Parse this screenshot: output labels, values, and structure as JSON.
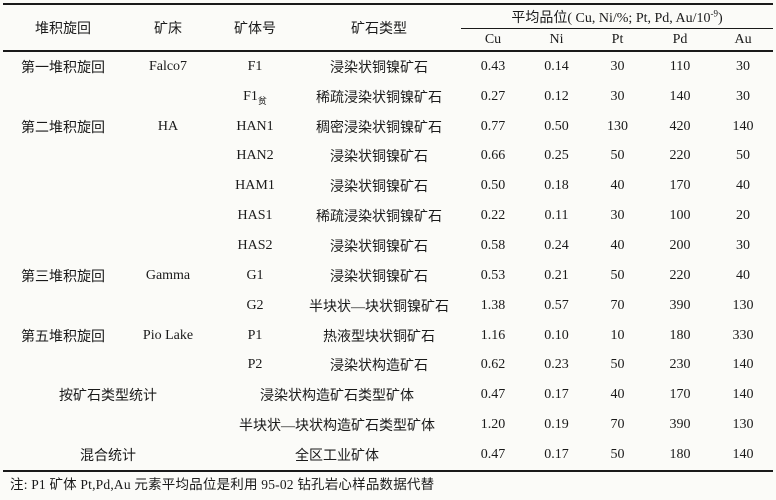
{
  "colors": {
    "background": "#fbfbf8",
    "text": "#1a1a1a",
    "rule_line": "#1a1a1a"
  },
  "table": {
    "headers": {
      "cycle": "堆积旋回",
      "deposit": "矿床",
      "ore_body": "矿体号",
      "ore_type": "矿石类型",
      "grade_group_prefix": "平均品位( Cu, Ni/%; Pt, Pd, Au/10",
      "grade_group_sup": "-9",
      "grade_group_suffix": ")",
      "cu": "Cu",
      "ni": "Ni",
      "pt": "Pt",
      "pd": "Pd",
      "au": "Au"
    },
    "rows": [
      {
        "cycle": "第一堆积旋回",
        "deposit": "Falco7",
        "ore_body": "F1",
        "ore_body_sub": "",
        "ore_type": "浸染状铜镍矿石",
        "cu": "0.43",
        "ni": "0.14",
        "pt": "30",
        "pd": "110",
        "au": "30"
      },
      {
        "cycle": "",
        "deposit": "",
        "ore_body": "F1",
        "ore_body_sub": "贫",
        "ore_type": "稀疏浸染状铜镍矿石",
        "cu": "0.27",
        "ni": "0.12",
        "pt": "30",
        "pd": "140",
        "au": "30"
      },
      {
        "cycle": "第二堆积旋回",
        "deposit": "HA",
        "ore_body": "HAN1",
        "ore_body_sub": "",
        "ore_type": "稠密浸染状铜镍矿石",
        "cu": "0.77",
        "ni": "0.50",
        "pt": "130",
        "pd": "420",
        "au": "140"
      },
      {
        "cycle": "",
        "deposit": "",
        "ore_body": "HAN2",
        "ore_body_sub": "",
        "ore_type": "浸染状铜镍矿石",
        "cu": "0.66",
        "ni": "0.25",
        "pt": "50",
        "pd": "220",
        "au": "50"
      },
      {
        "cycle": "",
        "deposit": "",
        "ore_body": "HAM1",
        "ore_body_sub": "",
        "ore_type": "浸染状铜镍矿石",
        "cu": "0.50",
        "ni": "0.18",
        "pt": "40",
        "pd": "170",
        "au": "40"
      },
      {
        "cycle": "",
        "deposit": "",
        "ore_body": "HAS1",
        "ore_body_sub": "",
        "ore_type": "稀疏浸染状铜镍矿石",
        "cu": "0.22",
        "ni": "0.11",
        "pt": "30",
        "pd": "100",
        "au": "20"
      },
      {
        "cycle": "",
        "deposit": "",
        "ore_body": "HAS2",
        "ore_body_sub": "",
        "ore_type": "浸染状铜镍矿石",
        "cu": "0.58",
        "ni": "0.24",
        "pt": "40",
        "pd": "200",
        "au": "30"
      },
      {
        "cycle": "第三堆积旋回",
        "deposit": "Gamma",
        "ore_body": "G1",
        "ore_body_sub": "",
        "ore_type": "浸染状铜镍矿石",
        "cu": "0.53",
        "ni": "0.21",
        "pt": "50",
        "pd": "220",
        "au": "40"
      },
      {
        "cycle": "",
        "deposit": "",
        "ore_body": "G2",
        "ore_body_sub": "",
        "ore_type": "半块状—块状铜镍矿石",
        "cu": "1.38",
        "ni": "0.57",
        "pt": "70",
        "pd": "390",
        "au": "130"
      },
      {
        "cycle": "第五堆积旋回",
        "deposit": "Pio Lake",
        "ore_body": "P1",
        "ore_body_sub": "",
        "ore_type": "热液型块状铜矿石",
        "cu": "1.16",
        "ni": "0.10",
        "pt": "10",
        "pd": "180",
        "au": "330"
      },
      {
        "cycle": "",
        "deposit": "",
        "ore_body": "P2",
        "ore_body_sub": "",
        "ore_type": "浸染状构造矿石",
        "cu": "0.62",
        "ni": "0.23",
        "pt": "50",
        "pd": "230",
        "au": "140"
      },
      {
        "span": true,
        "label": "按矿石类型统计",
        "ore_type": "浸染状构造矿石类型矿体",
        "cu": "0.47",
        "ni": "0.17",
        "pt": "40",
        "pd": "170",
        "au": "140"
      },
      {
        "span": true,
        "label": "",
        "ore_type": "半块状—块状构造矿石类型矿体",
        "cu": "1.20",
        "ni": "0.19",
        "pt": "70",
        "pd": "390",
        "au": "130"
      },
      {
        "span": true,
        "label": "混合统计",
        "ore_type": "全区工业矿体",
        "cu": "0.47",
        "ni": "0.17",
        "pt": "50",
        "pd": "180",
        "au": "140"
      }
    ]
  },
  "footnote": "注: P1 矿体 Pt,Pd,Au 元素平均品位是利用 95-02 钻孔岩心样品数据代替"
}
